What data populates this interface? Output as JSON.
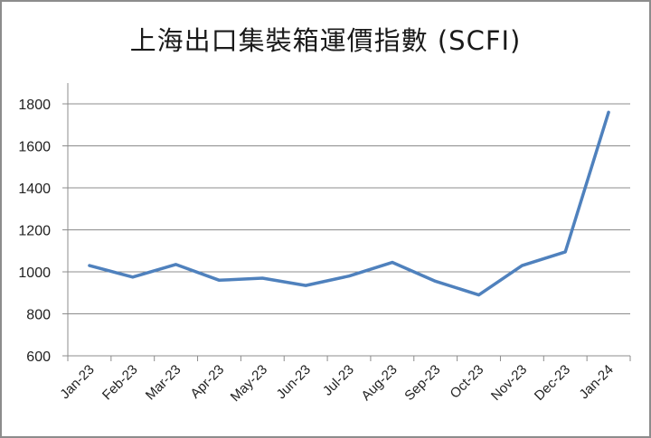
{
  "chart_data": {
    "type": "line",
    "title": "上海出口集裝箱運價指數 (SCFI)",
    "xlabel": "",
    "ylabel": "",
    "categories": [
      "Jan-23",
      "Feb-23",
      "Mar-23",
      "Apr-23",
      "May-23",
      "Jun-23",
      "Jul-23",
      "Aug-23",
      "Sep-23",
      "Oct-23",
      "Nov-23",
      "Dec-23",
      "Jan-24"
    ],
    "series": [
      {
        "name": "SCFI",
        "color": "#4f81bd",
        "values": [
          1030,
          975,
          1035,
          960,
          970,
          935,
          980,
          1045,
          955,
          890,
          1030,
          1095,
          1760
        ]
      }
    ],
    "ylim": [
      600,
      1900
    ],
    "yticks": [
      600,
      800,
      1000,
      1200,
      1400,
      1600,
      1800
    ],
    "grid": true,
    "legend": "none"
  },
  "colors": {
    "line": "#4f81bd",
    "grid": "#8c8c8c",
    "border": "#8c8c8c"
  }
}
